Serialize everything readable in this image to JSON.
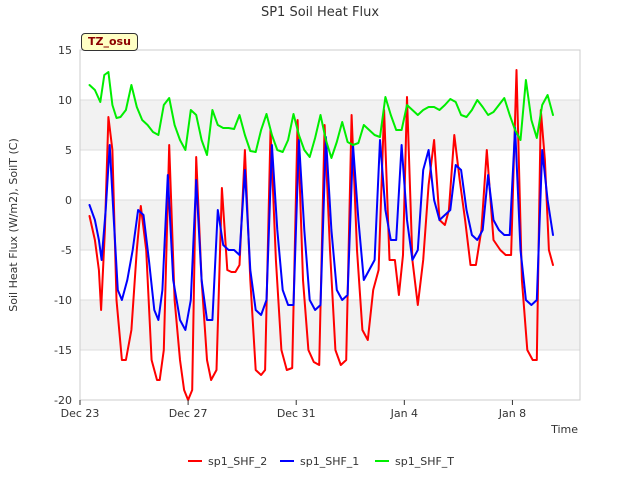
{
  "chart_data": {
    "type": "line",
    "title": "SP1 Soil Heat Flux",
    "xlabel": "Time",
    "ylabel": "Soil Heat Flux (W/m2), SoilT (C)",
    "badge": "TZ_osu",
    "ylim": [
      -20,
      15
    ],
    "xlim": [
      0,
      18.5
    ],
    "yticks": [
      -20,
      -15,
      -10,
      -5,
      0,
      5,
      10,
      15
    ],
    "xticks": [
      {
        "x": 0,
        "label": "Dec 23"
      },
      {
        "x": 4,
        "label": "Dec 27"
      },
      {
        "x": 8,
        "label": "Dec 31"
      },
      {
        "x": 12,
        "label": "Jan 4"
      },
      {
        "x": 16,
        "label": "Jan 8"
      }
    ],
    "grid": true,
    "legend_position": "bottom",
    "series": [
      {
        "name": "sp1_SHF_2",
        "color": "#ff0000",
        "x": [
          0.35,
          0.55,
          0.7,
          0.78,
          0.92,
          1.05,
          1.2,
          1.35,
          1.55,
          1.7,
          1.9,
          2.1,
          2.25,
          2.45,
          2.65,
          2.85,
          2.95,
          3.1,
          3.3,
          3.5,
          3.7,
          3.85,
          4.0,
          4.15,
          4.3,
          4.5,
          4.7,
          4.85,
          5.05,
          5.25,
          5.45,
          5.6,
          5.75,
          5.9,
          6.1,
          6.3,
          6.5,
          6.7,
          6.85,
          7.05,
          7.25,
          7.45,
          7.65,
          7.85,
          8.05,
          8.25,
          8.45,
          8.65,
          8.85,
          9.05,
          9.25,
          9.45,
          9.65,
          9.85,
          10.05,
          10.25,
          10.45,
          10.65,
          10.85,
          11.05,
          11.25,
          11.45,
          11.65,
          11.8,
          11.95,
          12.1,
          12.3,
          12.5,
          12.7,
          12.9,
          13.1,
          13.3,
          13.5,
          13.65,
          13.85,
          14.05,
          14.25,
          14.45,
          14.65,
          14.85,
          15.05,
          15.3,
          15.55,
          15.75,
          15.95,
          16.15,
          16.35,
          16.55,
          16.75,
          16.9,
          17.05,
          17.2,
          17.35,
          17.5
        ],
        "values": [
          -1.6,
          -4,
          -7,
          -11,
          -3,
          8.3,
          5,
          -10,
          -16,
          -16,
          -13,
          -5,
          -0.6,
          -5,
          -16,
          -18,
          -18,
          -15,
          5.5,
          -10,
          -16,
          -19,
          -20,
          -19,
          4.3,
          -8,
          -16,
          -18,
          -17,
          1.2,
          -7,
          -7.2,
          -7.2,
          -6.5,
          5,
          -8,
          -17,
          -17.5,
          -17,
          7,
          -6,
          -15,
          -17,
          -16.8,
          8,
          -8,
          -15,
          -16.2,
          -16.5,
          7.5,
          -5,
          -15,
          -16.5,
          -16,
          8.5,
          -5,
          -13,
          -14,
          -9,
          -7,
          9,
          -6,
          -6,
          -9.5,
          -5.5,
          10.3,
          -6,
          -10.5,
          -6,
          1.5,
          6,
          -2,
          -2.5,
          -1,
          6.5,
          2,
          -2,
          -6.5,
          -6.5,
          -3,
          5,
          -4,
          -5,
          -5.5,
          -5.5,
          13,
          -8,
          -15,
          -16,
          -16,
          9,
          4,
          -5,
          -6.5
        ]
      },
      {
        "name": "sp1_SHF_1",
        "color": "#0000ff",
        "x": [
          0.35,
          0.55,
          0.7,
          0.8,
          0.95,
          1.1,
          1.25,
          1.4,
          1.55,
          1.75,
          1.95,
          2.15,
          2.35,
          2.55,
          2.75,
          2.9,
          3.05,
          3.25,
          3.45,
          3.7,
          3.9,
          4.1,
          4.3,
          4.5,
          4.7,
          4.9,
          5.1,
          5.3,
          5.5,
          5.7,
          5.9,
          6.1,
          6.3,
          6.5,
          6.7,
          6.9,
          7.1,
          7.3,
          7.5,
          7.7,
          7.9,
          8.1,
          8.3,
          8.5,
          8.7,
          8.9,
          9.1,
          9.3,
          9.5,
          9.7,
          9.9,
          10.1,
          10.3,
          10.5,
          10.7,
          10.9,
          11.1,
          11.3,
          11.5,
          11.7,
          11.9,
          12.1,
          12.3,
          12.5,
          12.7,
          12.9,
          13.1,
          13.3,
          13.5,
          13.7,
          13.9,
          14.1,
          14.3,
          14.5,
          14.7,
          14.9,
          15.1,
          15.3,
          15.5,
          15.7,
          15.9,
          16.1,
          16.3,
          16.5,
          16.7,
          16.9,
          17.1,
          17.3,
          17.5
        ],
        "values": [
          -0.5,
          -2,
          -4,
          -6,
          -1,
          5.5,
          -2,
          -9,
          -10,
          -8,
          -5,
          -1,
          -1.5,
          -6,
          -11,
          -12,
          -9,
          2.5,
          -8,
          -12,
          -13,
          -10,
          2,
          -8,
          -12,
          -12,
          -1,
          -4.5,
          -5,
          -5,
          -5.5,
          3,
          -7,
          -11,
          -11.5,
          -10,
          5.5,
          -3,
          -9,
          -10.5,
          -10.5,
          6,
          -3,
          -10,
          -11,
          -10.5,
          6.3,
          -3,
          -9,
          -10,
          -9.5,
          5.5,
          -2,
          -8,
          -7,
          -6,
          6,
          -1,
          -4,
          -4,
          5.5,
          -2,
          -6,
          -5,
          3,
          5,
          0,
          -2,
          -1.5,
          -1,
          3.5,
          3,
          -1,
          -3.5,
          -4,
          -3,
          2.5,
          -2,
          -3,
          -3.5,
          -3.5,
          7.2,
          -5,
          -10,
          -10.5,
          -10,
          5,
          0,
          -3.5
        ]
      },
      {
        "name": "sp1_SHF_T",
        "color": "#00ee00",
        "x": [
          0.35,
          0.55,
          0.75,
          0.9,
          1.05,
          1.2,
          1.35,
          1.5,
          1.7,
          1.9,
          2.1,
          2.3,
          2.5,
          2.7,
          2.9,
          3.1,
          3.3,
          3.5,
          3.7,
          3.9,
          4.1,
          4.3,
          4.5,
          4.7,
          4.9,
          5.1,
          5.3,
          5.5,
          5.7,
          5.9,
          6.1,
          6.3,
          6.5,
          6.7,
          6.9,
          7.1,
          7.3,
          7.5,
          7.7,
          7.9,
          8.1,
          8.3,
          8.5,
          8.7,
          8.9,
          9.1,
          9.3,
          9.5,
          9.7,
          9.9,
          10.1,
          10.3,
          10.5,
          10.7,
          10.9,
          11.1,
          11.3,
          11.5,
          11.7,
          11.9,
          12.1,
          12.3,
          12.5,
          12.7,
          12.9,
          13.1,
          13.3,
          13.5,
          13.7,
          13.9,
          14.1,
          14.3,
          14.5,
          14.7,
          14.9,
          15.1,
          15.3,
          15.5,
          15.7,
          15.9,
          16.1,
          16.3,
          16.5,
          16.7,
          16.9,
          17.1,
          17.3,
          17.5
        ],
        "values": [
          11.5,
          11,
          9.8,
          12.5,
          12.8,
          9.5,
          8.2,
          8.3,
          9,
          11.5,
          9.3,
          8,
          7.5,
          6.8,
          6.5,
          9.5,
          10.2,
          7.5,
          6,
          5,
          9,
          8.5,
          6,
          4.5,
          9,
          7.5,
          7.2,
          7.2,
          7.1,
          8.5,
          6.5,
          4.9,
          4.8,
          7,
          8.6,
          6.5,
          5,
          4.8,
          6,
          8.6,
          6.5,
          5,
          4.3,
          6.2,
          8.5,
          6,
          4.2,
          5.8,
          7.8,
          5.8,
          5.5,
          5.7,
          7.5,
          7,
          6.5,
          6.3,
          10.3,
          8.5,
          7,
          7,
          9.5,
          9,
          8.5,
          9,
          9.3,
          9.3,
          9,
          9.5,
          10.1,
          9.8,
          8.5,
          8.3,
          9,
          10,
          9.3,
          8.5,
          8.8,
          9.5,
          10.2,
          8.5,
          7,
          6,
          12,
          8,
          6.2,
          9.5,
          10.5,
          8.5
        ]
      }
    ]
  }
}
